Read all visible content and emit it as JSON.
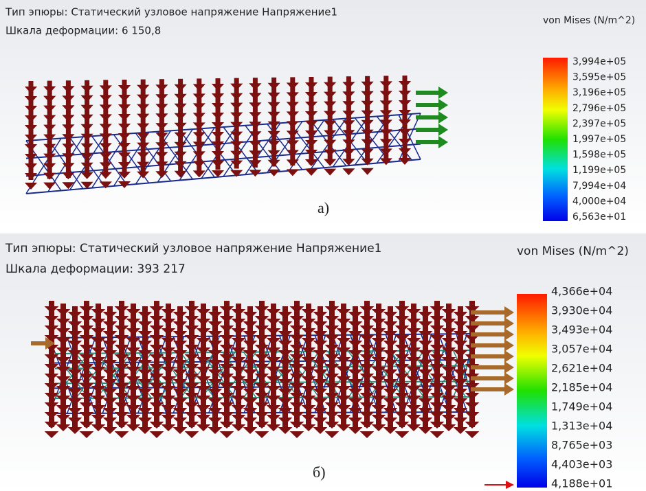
{
  "panels": [
    {
      "plot_type_line": "Тип эпюры: Статический узловое напряжение Напряжение1",
      "deformation_scale_line": "Шкала деформации: 6 150,8",
      "legend": {
        "title": "von Mises (N/m^2)",
        "labels": [
          "3,994e+05",
          "3,595e+05",
          "3,196e+05",
          "2,796e+05",
          "2,397e+05",
          "1,997e+05",
          "1,598e+05",
          "1,199e+05",
          "7,994e+04",
          "4,000e+04",
          "6,563e+01"
        ]
      },
      "caption": "а)"
    },
    {
      "plot_type_line": "Тип эпюры: Статический узловое напряжение Напряжение1",
      "deformation_scale_line": "Шкала деформации: 393 217",
      "legend": {
        "title": "von Mises (N/m^2)",
        "labels": [
          "4,366e+04",
          "3,930e+04",
          "3,493e+04",
          "3,057e+04",
          "2,621e+04",
          "2,185e+04",
          "1,749e+04",
          "1,313e+04",
          "8,765e+03",
          "4,403e+03",
          "4,188e+01"
        ]
      },
      "caption": "б)"
    }
  ]
}
